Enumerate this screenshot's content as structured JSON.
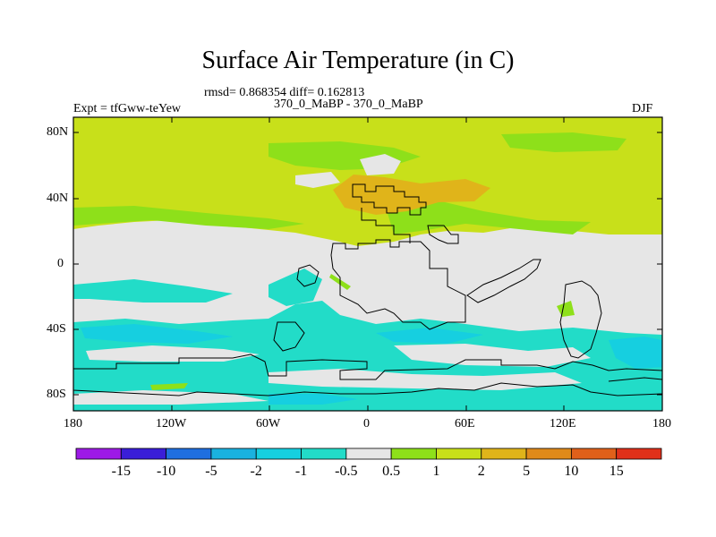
{
  "title": "Surface Air Temperature (in C)",
  "stats_line": "rmsd= 0.868354 diff= 0.162813",
  "comparison": "370_0_MaBP - 370_0_MaBP",
  "experiment": "Expt = tfGww-teYew",
  "season": "DJF",
  "lat_ticks": [
    "80N",
    "40N",
    "0",
    "40S",
    "80S"
  ],
  "lon_ticks": [
    "180",
    "120W",
    "60W",
    "0",
    "60E",
    "120E",
    "180"
  ],
  "colorbar": {
    "colors": [
      "#9d1ae6",
      "#3a1ed8",
      "#1f6fe0",
      "#1ab2e0",
      "#16cfe0",
      "#22dcc8",
      "#e6e6e6",
      "#8ee01a",
      "#c8e01a",
      "#e0b41a",
      "#e08a1a",
      "#e0601a",
      "#e0301a"
    ],
    "labels": [
      "-15",
      "-10",
      "-5",
      "-2",
      "-1",
      "-0.5",
      "0.5",
      "1",
      "2",
      "5",
      "10",
      "15"
    ]
  }
}
